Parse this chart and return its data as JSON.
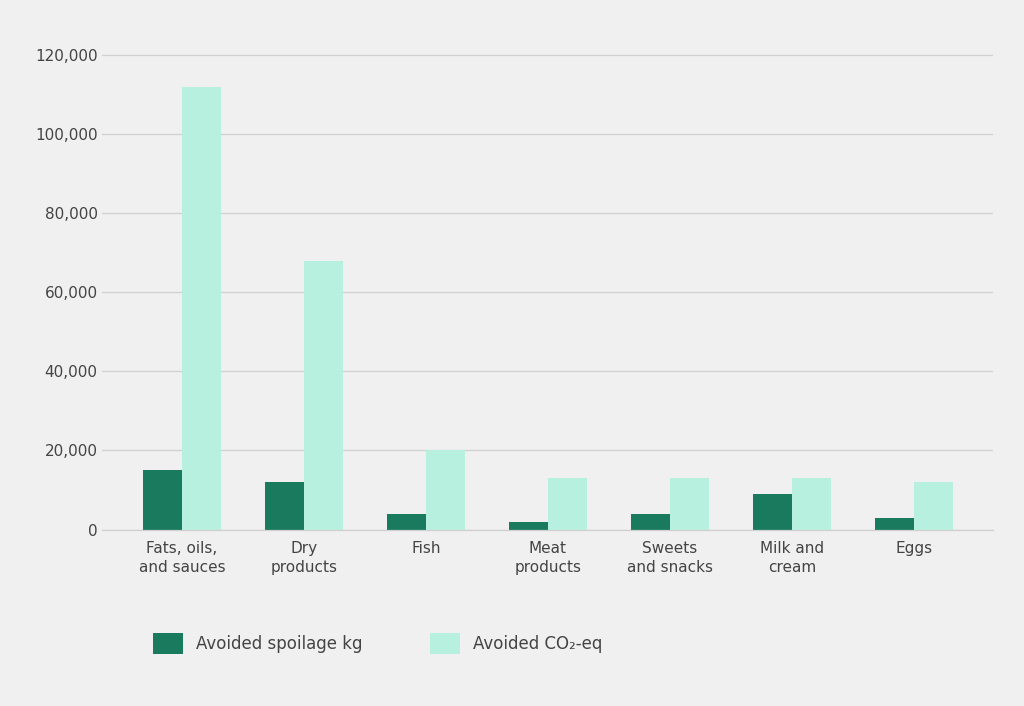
{
  "categories": [
    "Fats, oils,\nand sauces",
    "Dry\nproducts",
    "Fish",
    "Meat\nproducts",
    "Sweets\nand snacks",
    "Milk and\ncream",
    "Eggs"
  ],
  "avoided_spoilage": [
    15000,
    12000,
    4000,
    2000,
    4000,
    9000,
    3000
  ],
  "avoided_co2": [
    112000,
    68000,
    20000,
    13000,
    13000,
    13000,
    12000
  ],
  "spoilage_color": "#1a7a5e",
  "co2_color": "#b8f0e0",
  "background_color": "#f0f0f0",
  "plot_bg_color": "#f0f0f0",
  "grid_color": "#d0d0d0",
  "ylim": [
    0,
    125000
  ],
  "yticks": [
    0,
    20000,
    40000,
    60000,
    80000,
    100000,
    120000
  ],
  "legend_spoilage": "Avoided spoilage kg",
  "legend_co2": "Avoided CO₂-eq",
  "bar_width": 0.32,
  "font_color": "#444444",
  "tick_fontsize": 11,
  "legend_fontsize": 12,
  "axis_label_color": "#555555"
}
